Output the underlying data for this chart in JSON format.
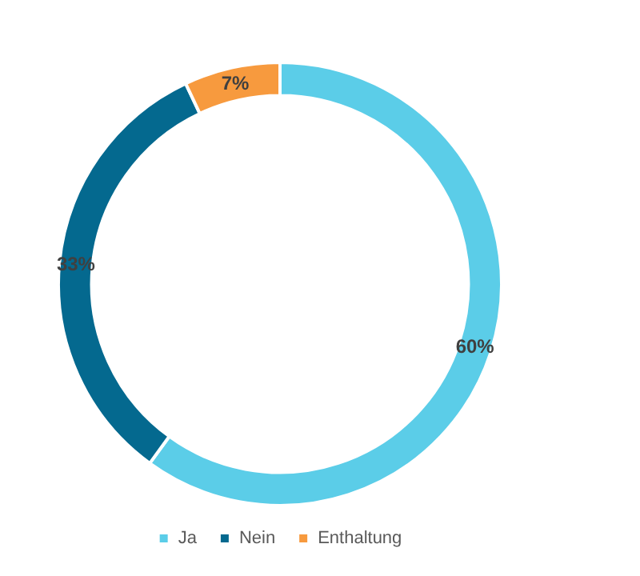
{
  "chart_data": {
    "type": "donut",
    "categories": [
      "Ja",
      "Nein",
      "Enthaltung"
    ],
    "values": [
      60,
      33,
      7
    ],
    "colors": [
      "#5bcde8",
      "#04698f",
      "#f79a3e"
    ],
    "value_labels": [
      "60%",
      "33%",
      "7%"
    ],
    "legend": "bottom"
  }
}
